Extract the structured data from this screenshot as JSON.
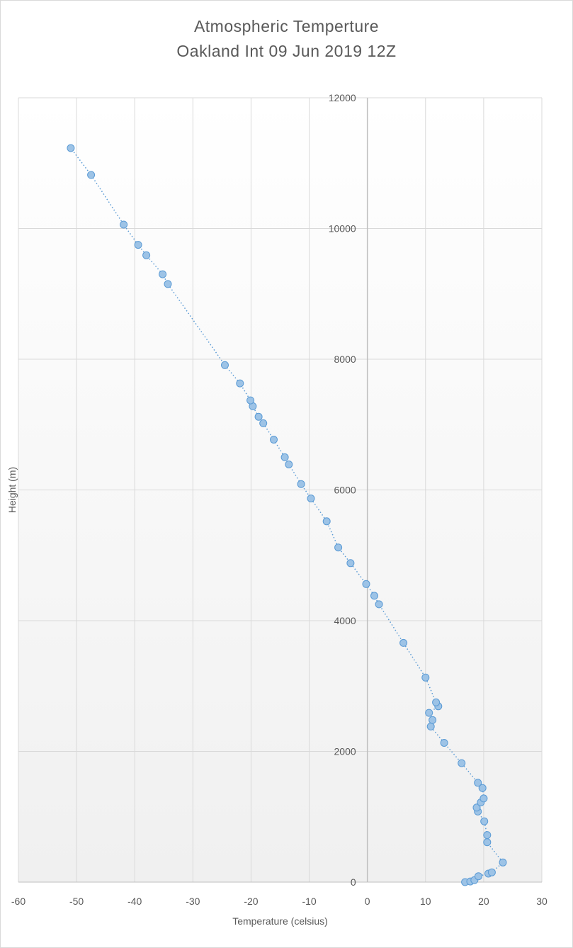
{
  "chart_data": {
    "type": "scatter",
    "title": "Atmospheric Temperture",
    "subtitle": "Oakland Int 09 Jun 2019 12Z",
    "xlabel": "Temperature (celsius)",
    "ylabel": "Height (m)",
    "xlim": [
      -60,
      30
    ],
    "ylim": [
      0,
      12000
    ],
    "x_ticks": [
      "-60",
      "-50",
      "-40",
      "-30",
      "-20",
      "-10",
      "0",
      "10",
      "20",
      "30"
    ],
    "y_ticks": [
      "0",
      "2000",
      "4000",
      "6000",
      "8000",
      "10000",
      "12000"
    ],
    "grid": true,
    "line_style": "dotted",
    "marker": "circle",
    "series_color": "#5b9bd5",
    "marker_fill": "#9dc3e6",
    "points": [
      {
        "x": 16.8,
        "y": 0
      },
      {
        "x": 17.7,
        "y": 10
      },
      {
        "x": 18.4,
        "y": 30
      },
      {
        "x": 19.1,
        "y": 90
      },
      {
        "x": 20.8,
        "y": 130
      },
      {
        "x": 21.4,
        "y": 150
      },
      {
        "x": 23.3,
        "y": 300
      },
      {
        "x": 20.6,
        "y": 610
      },
      {
        "x": 20.6,
        "y": 720
      },
      {
        "x": 20.1,
        "y": 930
      },
      {
        "x": 19.0,
        "y": 1080
      },
      {
        "x": 18.8,
        "y": 1140
      },
      {
        "x": 19.5,
        "y": 1220
      },
      {
        "x": 20.0,
        "y": 1280
      },
      {
        "x": 19.8,
        "y": 1440
      },
      {
        "x": 19.0,
        "y": 1520
      },
      {
        "x": 16.2,
        "y": 1820
      },
      {
        "x": 13.2,
        "y": 2130
      },
      {
        "x": 10.9,
        "y": 2380
      },
      {
        "x": 11.2,
        "y": 2480
      },
      {
        "x": 10.6,
        "y": 2590
      },
      {
        "x": 12.2,
        "y": 2690
      },
      {
        "x": 11.8,
        "y": 2750
      },
      {
        "x": 10.0,
        "y": 3130
      },
      {
        "x": 6.2,
        "y": 3660
      },
      {
        "x": 2.0,
        "y": 4250
      },
      {
        "x": 1.2,
        "y": 4380
      },
      {
        "x": -0.2,
        "y": 4560
      },
      {
        "x": -2.9,
        "y": 4880
      },
      {
        "x": -5.0,
        "y": 5120
      },
      {
        "x": -7.0,
        "y": 5520
      },
      {
        "x": -9.7,
        "y": 5870
      },
      {
        "x": -11.4,
        "y": 6090
      },
      {
        "x": -13.5,
        "y": 6390
      },
      {
        "x": -14.2,
        "y": 6500
      },
      {
        "x": -16.1,
        "y": 6770
      },
      {
        "x": -17.9,
        "y": 7020
      },
      {
        "x": -18.7,
        "y": 7120
      },
      {
        "x": -19.7,
        "y": 7280
      },
      {
        "x": -20.1,
        "y": 7370
      },
      {
        "x": -21.9,
        "y": 7630
      },
      {
        "x": -24.5,
        "y": 7910
      },
      {
        "x": -34.3,
        "y": 9150
      },
      {
        "x": -35.2,
        "y": 9300
      },
      {
        "x": -38.0,
        "y": 9590
      },
      {
        "x": -39.4,
        "y": 9750
      },
      {
        "x": -41.9,
        "y": 10060
      },
      {
        "x": -47.5,
        "y": 10820
      },
      {
        "x": -51.0,
        "y": 11230
      }
    ]
  }
}
